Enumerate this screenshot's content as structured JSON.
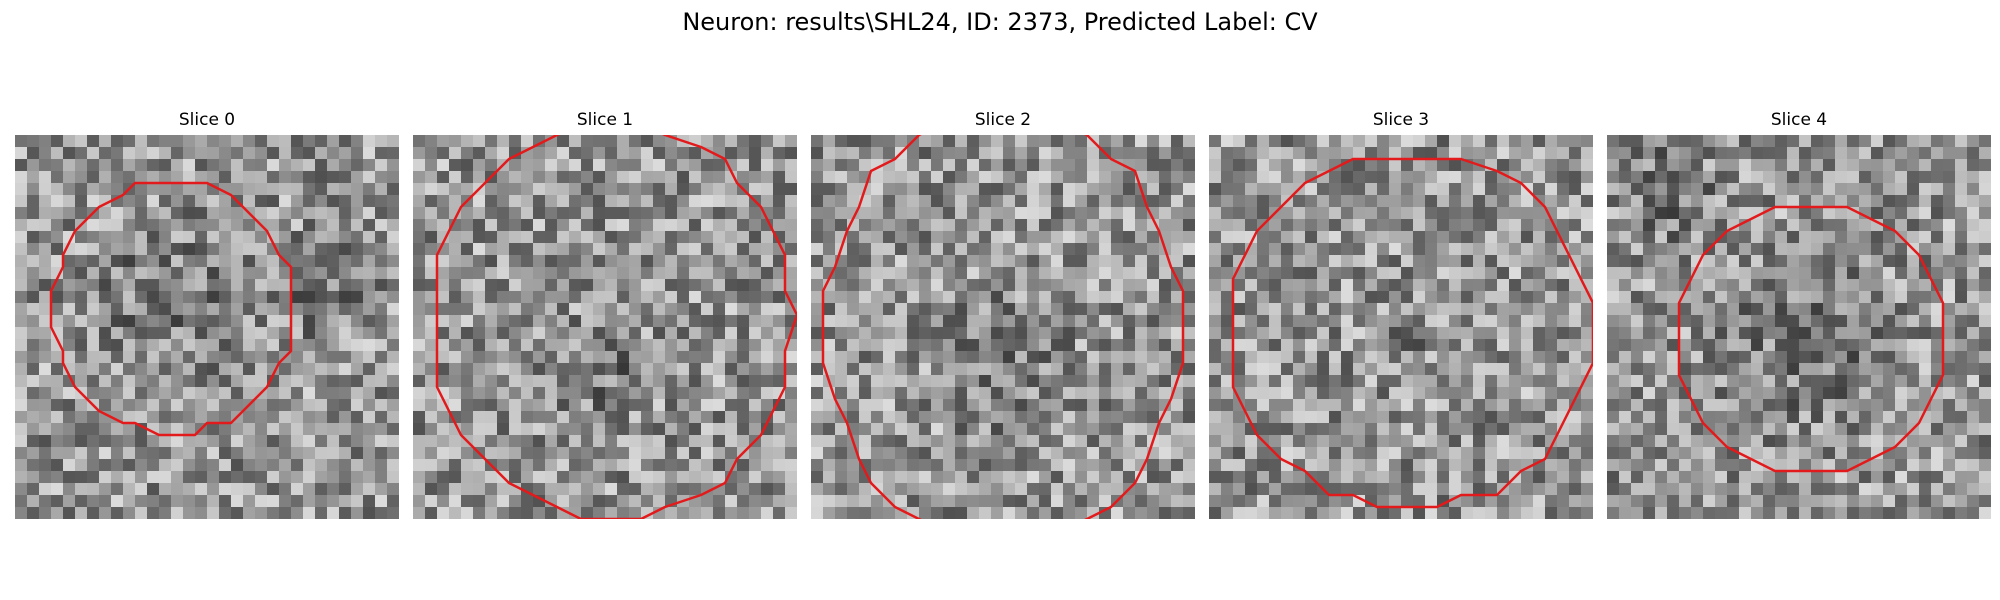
{
  "figure": {
    "title": "Neuron: results\\SHL24, ID: 2373, Predicted Label: CV"
  },
  "panels": [
    {
      "title": "Slice 0"
    },
    {
      "title": "Slice 1"
    },
    {
      "title": "Slice 2"
    },
    {
      "title": "Slice 3"
    },
    {
      "title": "Slice 4"
    }
  ],
  "colors": {
    "contour": "#e31a1c"
  }
}
